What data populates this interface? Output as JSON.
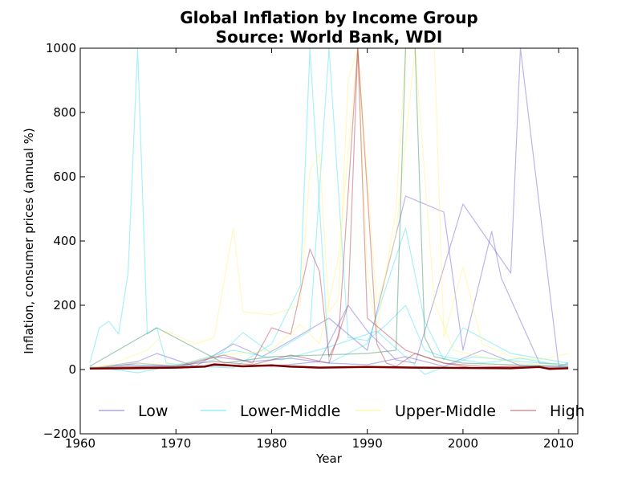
{
  "chart_data": {
    "type": "line",
    "title": "Global Inflation by Income Group\nSource: World Bank, WDI",
    "title_lines": [
      "Global Inflation by Income Group",
      "Source: World Bank, WDI"
    ],
    "xlabel": "Year",
    "ylabel": "Inflation, consumer prices (annual %)",
    "xlim": [
      1960,
      2012
    ],
    "ylim": [
      -200,
      1000
    ],
    "xticks": [
      1960,
      1970,
      1980,
      1990,
      2000,
      2010
    ],
    "yticks": [
      -200,
      0,
      200,
      400,
      600,
      800,
      1000
    ],
    "grid": false,
    "legend_position": "lower-center",
    "legend": [
      "Low",
      "Lower-Middle",
      "Upper-Middle",
      "High"
    ],
    "series": [
      {
        "name": "Low",
        "color": "#6a5acd",
        "lines": [
          {
            "x": [
              1961,
              1965,
              1970,
              1975,
              1980,
              1985,
              1988,
              1990,
              1993,
              1995,
              2000,
              2005,
              2006,
              2010,
              2011
            ],
            "y": [
              5,
              15,
              8,
              12,
              10,
              25,
              200,
              120,
              30,
              20,
              515,
              300,
              1000,
              10,
              20
            ]
          },
          {
            "x": [
              1961,
              1966,
              1968,
              1972,
              1976,
              1979,
              1982,
              1986,
              1990,
              1994,
              1998,
              2000,
              2003,
              2004,
              2008,
              2011
            ],
            "y": [
              3,
              25,
              50,
              10,
              80,
              40,
              90,
              160,
              60,
              540,
              490,
              60,
              430,
              285,
              20,
              15
            ]
          },
          {
            "x": [
              1961,
              1966,
              1970,
              1974,
              1978,
              1982,
              1986,
              1990,
              1994,
              1998,
              2002,
              2006,
              2011
            ],
            "y": [
              2,
              20,
              10,
              40,
              25,
              35,
              20,
              15,
              40,
              10,
              60,
              12,
              8
            ]
          }
        ]
      },
      {
        "name": "Lower-Middle",
        "color": "#40e0f0",
        "lines": [
          {
            "x": [
              1961,
              1962,
              1963,
              1964,
              1965,
              1966,
              1967,
              1968,
              1969,
              1972,
              1976,
              1980,
              1983,
              1984,
              1986,
              1990,
              1994,
              1996,
              1998,
              2000,
              2005,
              2011
            ],
            "y": [
              20,
              130,
              150,
              110,
              300,
              1000,
              110,
              130,
              20,
              10,
              5,
              80,
              260,
              1000,
              20,
              80,
              440,
              150,
              30,
              130,
              50,
              20
            ]
          },
          {
            "x": [
              1961,
              1965,
              1970,
              1974,
              1977,
              1980,
              1984,
              1986,
              1988,
              1990,
              1992,
              1994,
              1996,
              1998,
              2002,
              2006,
              2011
            ],
            "y": [
              5,
              15,
              10,
              30,
              115,
              50,
              120,
              1000,
              100,
              90,
              140,
              200,
              60,
              40,
              20,
              35,
              10
            ]
          },
          {
            "x": [
              1961,
              1966,
              1971,
              1976,
              1981,
              1986,
              1991,
              1996,
              2001,
              2006,
              2011
            ],
            "y": [
              10,
              -10,
              20,
              60,
              30,
              70,
              120,
              -15,
              40,
              25,
              15
            ]
          }
        ]
      },
      {
        "name": "Upper-Middle",
        "color": "#fff176",
        "lines": [
          {
            "x": [
              1961,
              1963,
              1967,
              1969,
              1972,
              1974,
              1976,
              1977,
              1980,
              1983,
              1984,
              1985,
              1986,
              1987,
              1988,
              1989,
              1990,
              1991,
              1993,
              1994,
              1995,
              1997,
              1998,
              2000,
              2002,
              2005,
              2008,
              2011
            ],
            "y": [
              5,
              15,
              60,
              120,
              80,
              100,
              440,
              180,
              170,
              200,
              620,
              670,
              180,
              220,
              900,
              1000,
              300,
              120,
              500,
              1000,
              1000,
              1000,
              100,
              320,
              80,
              40,
              30,
              50
            ]
          },
          {
            "x": [
              1961,
              1965,
              1970,
              1975,
              1980,
              1983,
              1985,
              1987,
              1989,
              1991,
              1993,
              1995,
              1997,
              1999,
              2002,
              2006,
              2011
            ],
            "y": [
              3,
              20,
              15,
              45,
              60,
              140,
              80,
              350,
              1000,
              200,
              420,
              1000,
              210,
              60,
              40,
              20,
              15
            ]
          }
        ]
      },
      {
        "name": "High",
        "color": "#b03a48",
        "lines": [
          {
            "x": [
              1961,
              1965,
              1970,
              1973,
              1975,
              1978,
              1980,
              1982,
              1984,
              1985,
              1986,
              1987,
              1989,
              1990,
              1991,
              1992,
              1993,
              1995,
              1998,
              2001,
              2005,
              2011
            ],
            "y": [
              3,
              10,
              5,
              30,
              45,
              20,
              130,
              110,
              375,
              305,
              40,
              100,
              1000,
              555,
              80,
              20,
              10,
              50,
              20,
              5,
              10,
              5
            ]
          },
          {
            "x": [
              1961,
              1965,
              1970,
              1974,
              1978,
              1982,
              1986,
              1988,
              1989,
              1990,
              1994,
              1998,
              2002,
              2006,
              2011
            ],
            "y": [
              5,
              8,
              12,
              25,
              15,
              45,
              20,
              200,
              1000,
              160,
              60,
              20,
              10,
              8,
              3
            ]
          }
        ]
      },
      {
        "name": "",
        "color": "#2e8b57",
        "lines": [
          {
            "x": [
              1961,
              1968,
              1975,
              1980,
              1990,
              1993,
              1994,
              1995,
              1996,
              1997,
              2000,
              2005,
              2011
            ],
            "y": [
              10,
              130,
              20,
              40,
              50,
              60,
              1000,
              1000,
              100,
              40,
              20,
              15,
              10
            ]
          }
        ]
      },
      {
        "name": "",
        "color": "#7a0000",
        "bold": true,
        "lines": [
          {
            "x": [
              1961,
              1965,
              1970,
              1973,
              1974,
              1975,
              1977,
              1980,
              1982,
              1985,
              1990,
              1995,
              2000,
              2005,
              2008,
              2009,
              2011
            ],
            "y": [
              3,
              4,
              6,
              9,
              16,
              14,
              10,
              13,
              9,
              6,
              8,
              6,
              5,
              4,
              8,
              2,
              4
            ]
          }
        ]
      }
    ]
  }
}
